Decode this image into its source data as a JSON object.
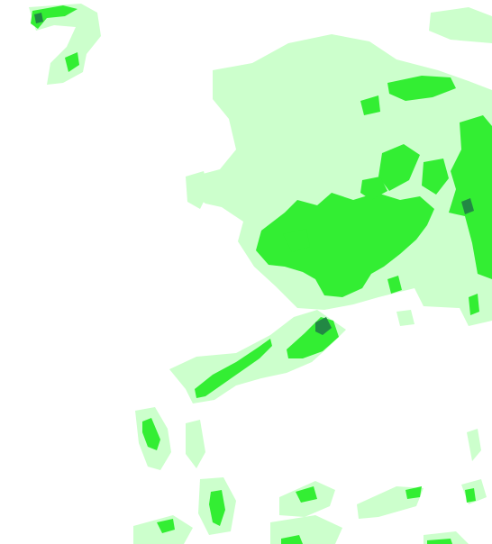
{
  "map": {
    "background_color": "#ffffff",
    "layers": [
      {
        "name": "low-precipitation-layer",
        "level": 1,
        "color": "#ccffcc"
      },
      {
        "name": "medium-precipitation-layer",
        "level": 2,
        "color": "#33ee33"
      },
      {
        "name": "high-precipitation-layer",
        "level": 3,
        "color": "#228844"
      }
    ]
  }
}
